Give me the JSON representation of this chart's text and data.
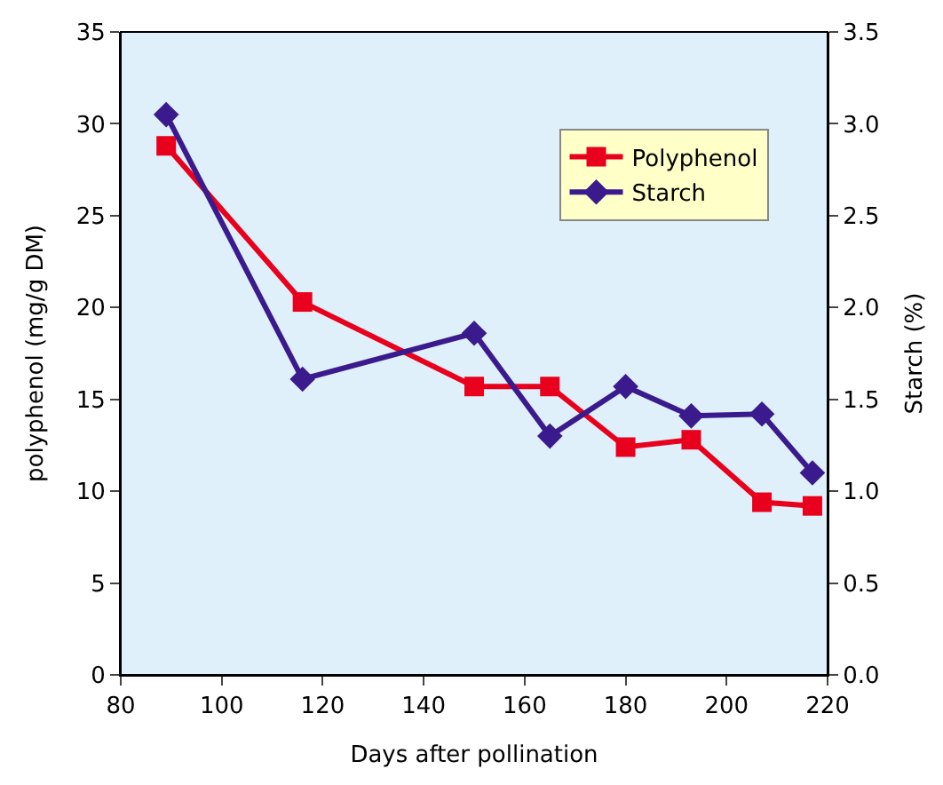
{
  "chart_data": {
    "type": "line",
    "xlabel": "Days after pollination",
    "ylabel": "polyphenol (mg/g DM)",
    "y2label": "Starch (%)",
    "x": [
      89,
      116,
      150,
      165,
      180,
      193,
      207,
      217
    ],
    "series": [
      {
        "name": "Polyphenol",
        "color": "#e8001c",
        "marker": "square",
        "values": [
          28.8,
          20.3,
          15.7,
          15.7,
          12.4,
          12.8,
          9.4,
          9.2
        ]
      },
      {
        "name": "Starch",
        "color": "#3a1a8c",
        "marker": "diamond",
        "axis": "y2",
        "values": [
          3.05,
          1.61,
          1.86,
          1.3,
          1.57,
          1.41,
          1.42,
          1.1
        ]
      }
    ],
    "xlim": [
      80,
      220
    ],
    "xticks": [
      80,
      100,
      120,
      140,
      160,
      180,
      200,
      220
    ],
    "ylim": [
      0,
      35
    ],
    "yticks": [
      0,
      5,
      10,
      15,
      20,
      25,
      30,
      35
    ],
    "y2lim": [
      0,
      3.5
    ],
    "y2ticks": [
      {
        "value": 0,
        "label": "0.0"
      },
      {
        "value": 0.5,
        "label": "0.5"
      },
      {
        "value": 1,
        "label": "1.0"
      },
      {
        "value": 1.5,
        "label": "1.5"
      },
      {
        "value": 2,
        "label": "2.0"
      },
      {
        "value": 2.5,
        "label": "2.5"
      },
      {
        "value": 3,
        "label": "3.0"
      },
      {
        "value": 3.5,
        "label": "3.5"
      }
    ],
    "grid": false,
    "legend": "top right",
    "line_style": "solid"
  }
}
